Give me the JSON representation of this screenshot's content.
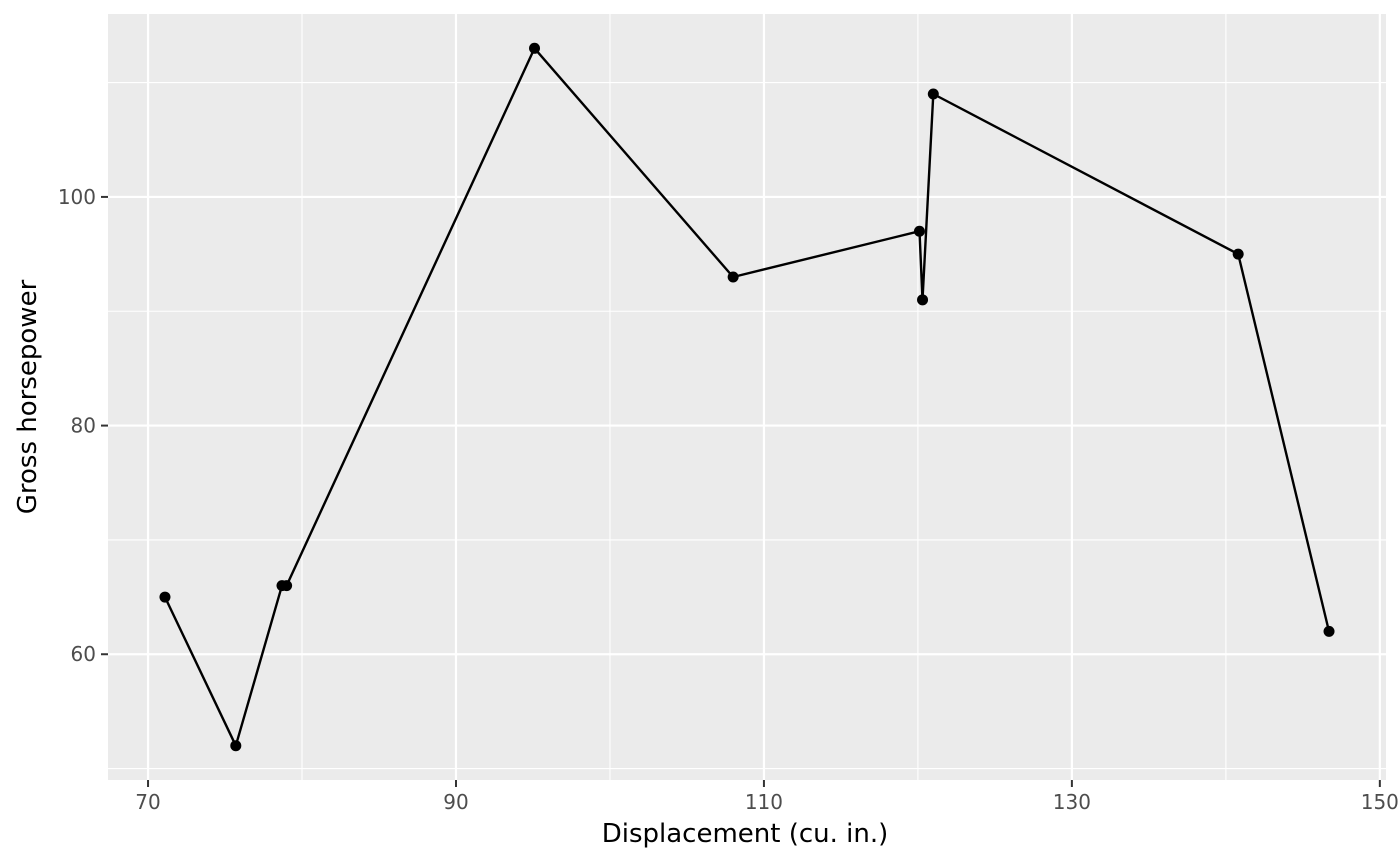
{
  "chart_data": {
    "type": "line",
    "title": "",
    "xlabel": "Displacement (cu. in.)",
    "ylabel": "Gross horsepower",
    "xlim": [
      67.4,
      150.4
    ],
    "ylim": [
      49.0,
      116.0
    ],
    "x_ticks": [
      70,
      90,
      110,
      130,
      150
    ],
    "y_ticks": [
      60,
      80,
      100
    ],
    "x_minor": [
      80,
      100,
      120,
      140
    ],
    "y_minor": [
      50,
      70,
      90,
      110
    ],
    "grid": true,
    "legend": "none",
    "series": [
      {
        "x": [
          71.1,
          75.7,
          78.7,
          79.0,
          95.1,
          108.0,
          120.1,
          120.3,
          121.0,
          140.8,
          146.7
        ],
        "y": [
          65,
          52,
          66,
          66,
          113,
          93,
          97,
          91,
          109,
          95,
          62
        ]
      }
    ],
    "colors": {
      "panel": "#ebebeb",
      "grid": "#ffffff",
      "line": "#000000",
      "tick": "#333333"
    }
  }
}
